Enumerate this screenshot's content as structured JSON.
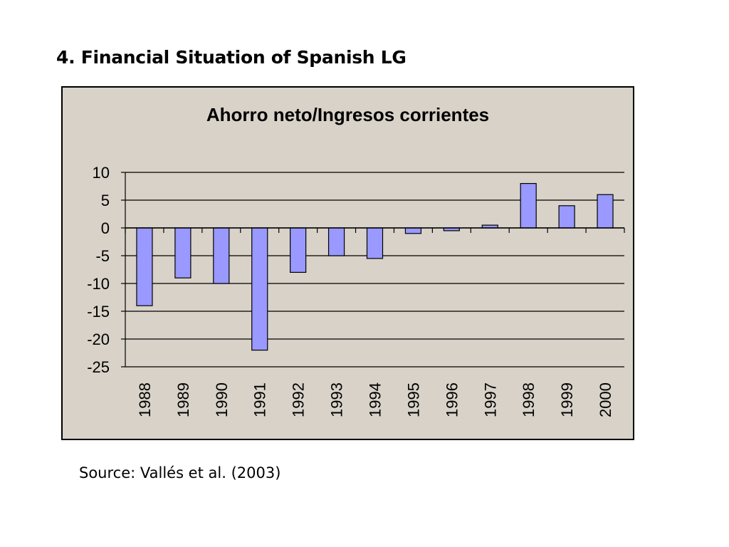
{
  "slide": {
    "heading": "4. Financial Situation of Spanish LG",
    "source": "Source: Vallés et al. (2003)"
  },
  "colors": {
    "bar_fill": "#9999ff",
    "plot_background": "#d8d2c8",
    "border": "#000000"
  },
  "chart_data": {
    "type": "bar",
    "title": "Ahorro neto/Ingresos corrientes",
    "xlabel": "",
    "ylabel": "",
    "categories": [
      "1988",
      "1989",
      "1990",
      "1991",
      "1992",
      "1993",
      "1994",
      "1995",
      "1996",
      "1997",
      "1998",
      "1999",
      "2000"
    ],
    "values": [
      -14,
      -9,
      -10,
      -22,
      -8,
      -5,
      -5.5,
      -1,
      -0.5,
      0.5,
      8,
      4,
      6
    ],
    "ylim": [
      -25,
      10
    ],
    "yticks": [
      10,
      5,
      0,
      -5,
      -10,
      -15,
      -20,
      -25
    ],
    "grid": true,
    "legend": "none"
  }
}
